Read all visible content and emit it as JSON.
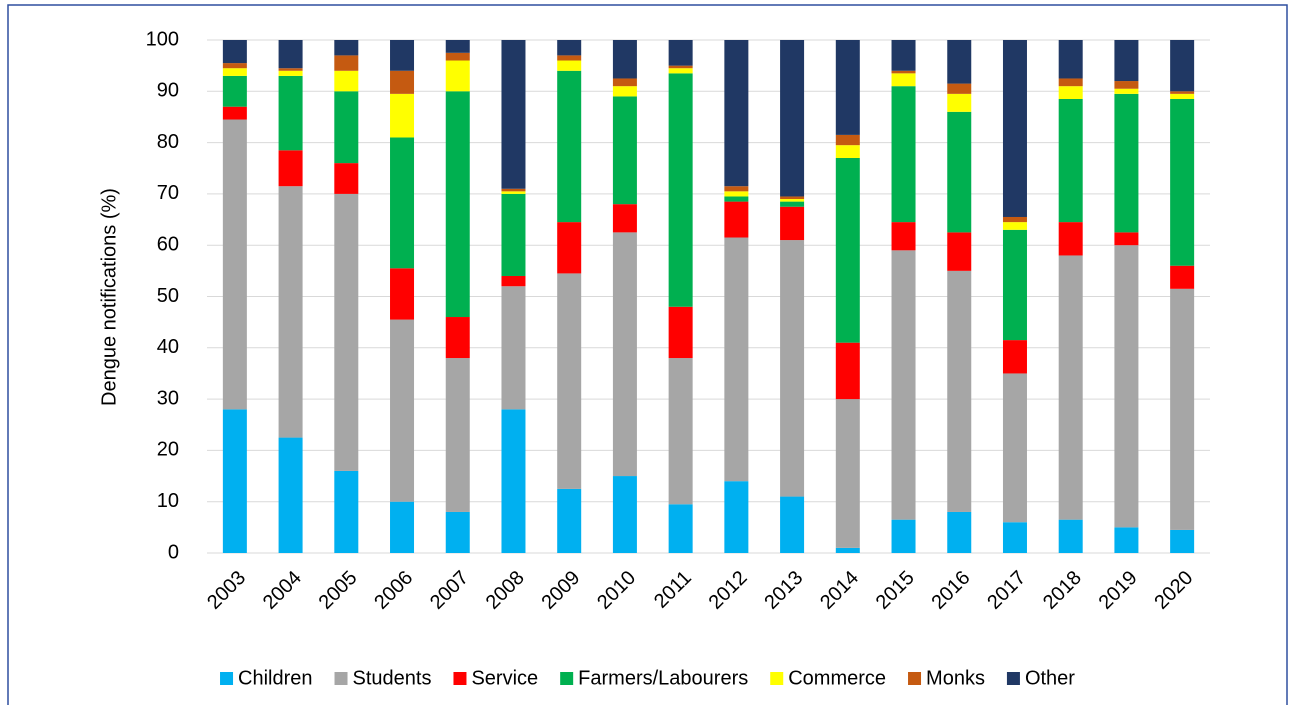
{
  "chart_data": {
    "type": "stacked_bar",
    "ylabel": "Dengue notifications (%)",
    "categories": [
      "2003",
      "2004",
      "2005",
      "2006",
      "2007",
      "2008",
      "2009",
      "2010",
      "2011",
      "2012",
      "2013",
      "2014",
      "2015",
      "2016",
      "2017",
      "2018",
      "2019",
      "2020"
    ],
    "series": [
      {
        "name": "Children",
        "color": "#00b0f0",
        "values": [
          28,
          22.5,
          16,
          10,
          8,
          28,
          12.5,
          15,
          9.5,
          14,
          11,
          1,
          6.5,
          8,
          6,
          6.5,
          5,
          4.5
        ]
      },
      {
        "name": "Students",
        "color": "#a6a6a6",
        "values": [
          56.5,
          49,
          54,
          35.5,
          30,
          24,
          42,
          47.5,
          28.5,
          47.5,
          50,
          29,
          52.5,
          47,
          29,
          51.5,
          55,
          47
        ]
      },
      {
        "name": "Service",
        "color": "#ff0000",
        "values": [
          2.5,
          7,
          6,
          10,
          8,
          2,
          10,
          5.5,
          10,
          7,
          6.5,
          11,
          5.5,
          7.5,
          6.5,
          6.5,
          2.5,
          4.5
        ]
      },
      {
        "name": "Farmers/Labourers",
        "color": "#00b050",
        "values": [
          6,
          14.5,
          14,
          25.5,
          44,
          16,
          29.5,
          21,
          45.5,
          1,
          1,
          36,
          26.5,
          23.5,
          21.5,
          24,
          27,
          32.5
        ]
      },
      {
        "name": "Commerce",
        "color": "#ffff00",
        "values": [
          1.5,
          1,
          4,
          8.5,
          6,
          0.5,
          2,
          2,
          1,
          1,
          0.5,
          2.5,
          2.5,
          3.5,
          1.5,
          2.5,
          1,
          1
        ]
      },
      {
        "name": "Monks",
        "color": "#c55a11",
        "values": [
          1,
          0.5,
          3,
          4.5,
          1.5,
          0.5,
          1,
          1.5,
          0.5,
          1,
          0.5,
          2,
          0.5,
          2,
          1,
          1.5,
          1.5,
          0.5
        ]
      },
      {
        "name": "Other",
        "color": "#203864",
        "values": [
          4.5,
          5.5,
          3,
          6,
          2.5,
          29,
          3,
          7.5,
          5,
          28.5,
          30.5,
          18.5,
          6,
          8.5,
          34.5,
          7.5,
          8,
          10
        ]
      }
    ],
    "ylim": [
      0,
      100
    ],
    "yticks": [
      0,
      10,
      20,
      30,
      40,
      50,
      60,
      70,
      80,
      90,
      100
    ],
    "grid": true,
    "legend": "bottom"
  }
}
